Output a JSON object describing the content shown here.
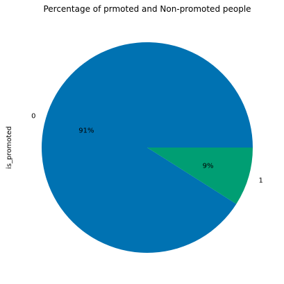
{
  "chart_data": {
    "type": "pie",
    "title": "Percentage of prmoted and Non-promoted people",
    "ylabel": "is_promoted",
    "categories": [
      "0",
      "1"
    ],
    "values": [
      91,
      9
    ],
    "pct_labels": [
      "91%",
      "9%"
    ],
    "colors": [
      "#0072B2",
      "#009E73"
    ],
    "legend": "none"
  }
}
